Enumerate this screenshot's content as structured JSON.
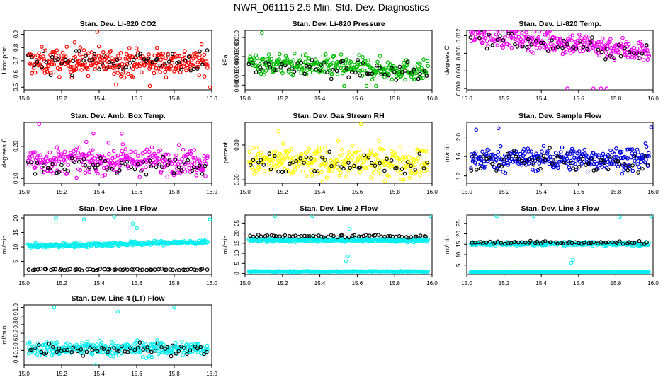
{
  "page": {
    "title": "NWR_061115  2.5 Min. Std. Dev. Diagnostics"
  },
  "x_ticks": [
    15.0,
    15.2,
    15.4,
    15.6,
    15.8,
    16.0
  ],
  "x_tick_labels": [
    "15.0",
    "15.2",
    "15.4",
    "15.6",
    "15.8",
    "16.0"
  ],
  "chart_data": [
    {
      "type": "scatter",
      "title": "Stan. Dev. Li-820 CO2",
      "ylabel": "Licor ppm",
      "xlim": [
        15.0,
        16.0
      ],
      "ylim": [
        0.48,
        0.93
      ],
      "yticks": [
        0.5,
        0.6,
        0.7,
        0.8,
        0.9
      ],
      "ytick_labels": [
        "0.5",
        "0.6",
        "0.7",
        "0.8",
        "0.9"
      ],
      "color": "#ff0000",
      "series": [
        {
          "name": "main",
          "center": 0.69,
          "spread": 0.07,
          "trend": 0.0,
          "count": 300,
          "outliers": [
            [
              15.39,
              0.92
            ],
            [
              15.67,
              0.51
            ],
            [
              15.99,
              0.5
            ],
            [
              15.49,
              0.52
            ],
            [
              15.27,
              0.84
            ]
          ]
        },
        {
          "name": "black",
          "center": 0.7,
          "spread": 0.06,
          "trend": 0.0,
          "count": 60
        }
      ]
    },
    {
      "type": "scatter",
      "title": "Stan. Dev. Li-820 Pressure",
      "ylabel": "kPa",
      "xlim": [
        15.0,
        16.0
      ],
      "ylim": [
        -0.001,
        0.0115
      ],
      "yticks": [
        0.0,
        0.002,
        0.004,
        0.006,
        0.008,
        0.01
      ],
      "ytick_labels": [
        "0.000",
        "0.002",
        "0.004",
        "0.006",
        "0.008",
        "0.010"
      ],
      "color": "#00bb00",
      "series": [
        {
          "name": "main",
          "center": 0.0038,
          "spread": 0.0015,
          "trend": -0.0018,
          "count": 300,
          "outliers": [
            [
              15.09,
              0.011
            ],
            [
              15.53,
              -0.0002
            ],
            [
              15.7,
              -0.0002
            ],
            [
              15.65,
              -0.0002
            ]
          ]
        },
        {
          "name": "black",
          "center": 0.0033,
          "spread": 0.0012,
          "trend": -0.0015,
          "count": 60
        }
      ]
    },
    {
      "type": "scatter",
      "title": "Stan. Dev. Li-820 Temp.",
      "ylabel": "degrees C",
      "xlim": [
        15.0,
        16.0
      ],
      "ylim": [
        -0.0003,
        0.0132
      ],
      "yticks": [
        0.0,
        0.004,
        0.008,
        0.012
      ],
      "ytick_labels": [
        "0.000",
        "0.004",
        "0.008",
        "0.012"
      ],
      "color": "#ee00ee",
      "series": [
        {
          "name": "main",
          "center": 0.0105,
          "spread": 0.0018,
          "trend": -0.0045,
          "count": 300,
          "outliers": [
            [
              15.54,
              0.0
            ],
            [
              15.75,
              0.0
            ],
            [
              15.68,
              0.0
            ],
            [
              15.72,
              0.0
            ]
          ]
        },
        {
          "name": "black",
          "center": 0.0098,
          "spread": 0.0015,
          "trend": -0.004,
          "count": 50
        }
      ]
    },
    {
      "type": "scatter",
      "title": "Stan. Dev. Amb. Box Temp.",
      "ylabel": "degrees C",
      "xlim": [
        15.0,
        16.0
      ],
      "ylim": [
        0.085,
        0.275
      ],
      "yticks": [
        0.1,
        0.2
      ],
      "ytick_labels": [
        "0.10",
        "0.20"
      ],
      "color": "#ee00ee",
      "series": [
        {
          "name": "main",
          "center": 0.155,
          "spread": 0.028,
          "trend": 0.0,
          "count": 300,
          "outliers": [
            [
              15.08,
              0.27
            ],
            [
              15.37,
              0.24
            ],
            [
              15.52,
              0.24
            ]
          ]
        },
        {
          "name": "black",
          "center": 0.14,
          "spread": 0.02,
          "trend": 0.0,
          "count": 60
        }
      ]
    },
    {
      "type": "scatter",
      "title": "Stan. Dev. Gas Stream RH",
      "ylabel": "percent",
      "xlim": [
        15.0,
        16.0
      ],
      "ylim": [
        0.19,
        0.365
      ],
      "yticks": [
        0.2,
        0.3
      ],
      "ytick_labels": [
        "0.20",
        "0.30"
      ],
      "color": "#ffff00",
      "series": [
        {
          "name": "main",
          "center": 0.25,
          "spread": 0.03,
          "trend": 0.0,
          "count": 300,
          "outliers": [
            [
              15.62,
              0.36
            ],
            [
              15.18,
              0.34
            ]
          ]
        },
        {
          "name": "black",
          "center": 0.245,
          "spread": 0.025,
          "trend": 0.0,
          "count": 50
        }
      ]
    },
    {
      "type": "scatter",
      "title": "Stan. Dev. Sample Flow",
      "ylabel": "ml/min",
      "xlim": [
        15.0,
        16.0
      ],
      "ylim": [
        1.05,
        2.3
      ],
      "yticks": [
        1.2,
        1.6,
        2.0
      ],
      "ytick_labels": [
        "1.2",
        "1.6",
        "2.0"
      ],
      "color": "#0000dd",
      "series": [
        {
          "name": "main",
          "center": 1.55,
          "spread": 0.16,
          "trend": 0.0,
          "count": 300,
          "outliers": [
            [
              15.99,
              2.2
            ],
            [
              15.05,
              2.15
            ],
            [
              15.17,
              2.18
            ]
          ]
        },
        {
          "name": "black",
          "center": 1.5,
          "spread": 0.15,
          "trend": 0.0,
          "count": 60
        }
      ]
    },
    {
      "type": "scatter",
      "title": "Stan. Dev. Line 1 Flow",
      "ylabel": "ml/min",
      "xlim": [
        15.0,
        16.0
      ],
      "ylim": [
        0.5,
        21.0
      ],
      "yticks": [
        5,
        10,
        15,
        20
      ],
      "ytick_labels": [
        "5",
        "10",
        "15",
        "20"
      ],
      "color": "#00eeee",
      "series": [
        {
          "name": "main",
          "center": 11.0,
          "spread": 0.5,
          "trend": 1.5,
          "count": 300,
          "outliers": [
            [
              15.17,
              20.0
            ],
            [
              15.58,
              18.0
            ],
            [
              15.6,
              16.5
            ],
            [
              15.99,
              19.5
            ],
            [
              15.48,
              20.5
            ],
            [
              15.32,
              19.5
            ]
          ]
        },
        {
          "name": "black",
          "center": 2.2,
          "spread": 0.2,
          "trend": 0.0,
          "count": 60
        }
      ]
    },
    {
      "type": "scatter",
      "title": "Stan. Dev. Line 2 Flow",
      "ylabel": "ml/min",
      "xlim": [
        15.0,
        16.0
      ],
      "ylim": [
        -0.5,
        29.0
      ],
      "yticks": [
        0,
        5,
        10,
        15,
        20,
        25
      ],
      "ytick_labels": [
        "0",
        "5",
        "10",
        "15",
        "20",
        "25"
      ],
      "color": "#00eeee",
      "series": [
        {
          "name": "main",
          "center": 16.5,
          "spread": 0.6,
          "trend": 0.0,
          "count": 280,
          "outliers": [
            [
              15.16,
              28.5
            ],
            [
              15.36,
              28.5
            ],
            [
              15.99,
              28.5
            ],
            [
              15.55,
              8.5
            ],
            [
              15.54,
              6.0
            ],
            [
              15.56,
              22.0
            ]
          ]
        },
        {
          "name": "low",
          "center": 1.0,
          "spread": 0.15,
          "trend": 0.0,
          "count": 300
        },
        {
          "name": "black",
          "center": 18.5,
          "spread": 0.4,
          "trend": 0.0,
          "count": 60
        }
      ]
    },
    {
      "type": "scatter",
      "title": "Stan. Dev. Line 3 Flow",
      "ylabel": "ml/min",
      "xlim": [
        15.0,
        16.0
      ],
      "ylim": [
        0.5,
        29.0
      ],
      "yticks": [
        5,
        10,
        15,
        20,
        25
      ],
      "ytick_labels": [
        "5",
        "10",
        "15",
        "20",
        "25"
      ],
      "color": "#00eeee",
      "series": [
        {
          "name": "main",
          "center": 15.2,
          "spread": 0.6,
          "trend": 0.0,
          "count": 280,
          "outliers": [
            [
              15.16,
              28.5
            ],
            [
              15.36,
              28.5
            ],
            [
              15.99,
              28.5
            ],
            [
              15.57,
              7.5
            ],
            [
              15.56,
              6.0
            ],
            [
              15.82,
              28.0
            ]
          ]
        },
        {
          "name": "low",
          "center": 1.6,
          "spread": 0.15,
          "trend": 0.0,
          "count": 300
        },
        {
          "name": "black",
          "center": 15.8,
          "spread": 0.5,
          "trend": 0.0,
          "count": 60
        }
      ]
    },
    {
      "type": "scatter",
      "title": "Stan. Dev. Line 4 (LT) Flow",
      "ylabel": "ml/min",
      "xlim": [
        15.0,
        16.0
      ],
      "ylim": [
        0.33,
        1.03
      ],
      "yticks": [
        0.4,
        0.5,
        0.6,
        0.7,
        0.8,
        0.9,
        1.0
      ],
      "ytick_labels": [
        "0.4",
        "0.5",
        "0.6",
        "0.7",
        "0.8",
        "0.9",
        "1.0"
      ],
      "color": "#00eeee",
      "series": [
        {
          "name": "main",
          "center": 0.52,
          "spread": 0.06,
          "trend": 0.0,
          "count": 300,
          "outliers": [
            [
              15.16,
              1.0
            ],
            [
              15.8,
              1.0
            ],
            [
              15.5,
              0.95
            ],
            [
              15.38,
              0.33
            ]
          ]
        },
        {
          "name": "black",
          "center": 0.52,
          "spread": 0.05,
          "trend": 0.0,
          "count": 60
        }
      ]
    }
  ]
}
